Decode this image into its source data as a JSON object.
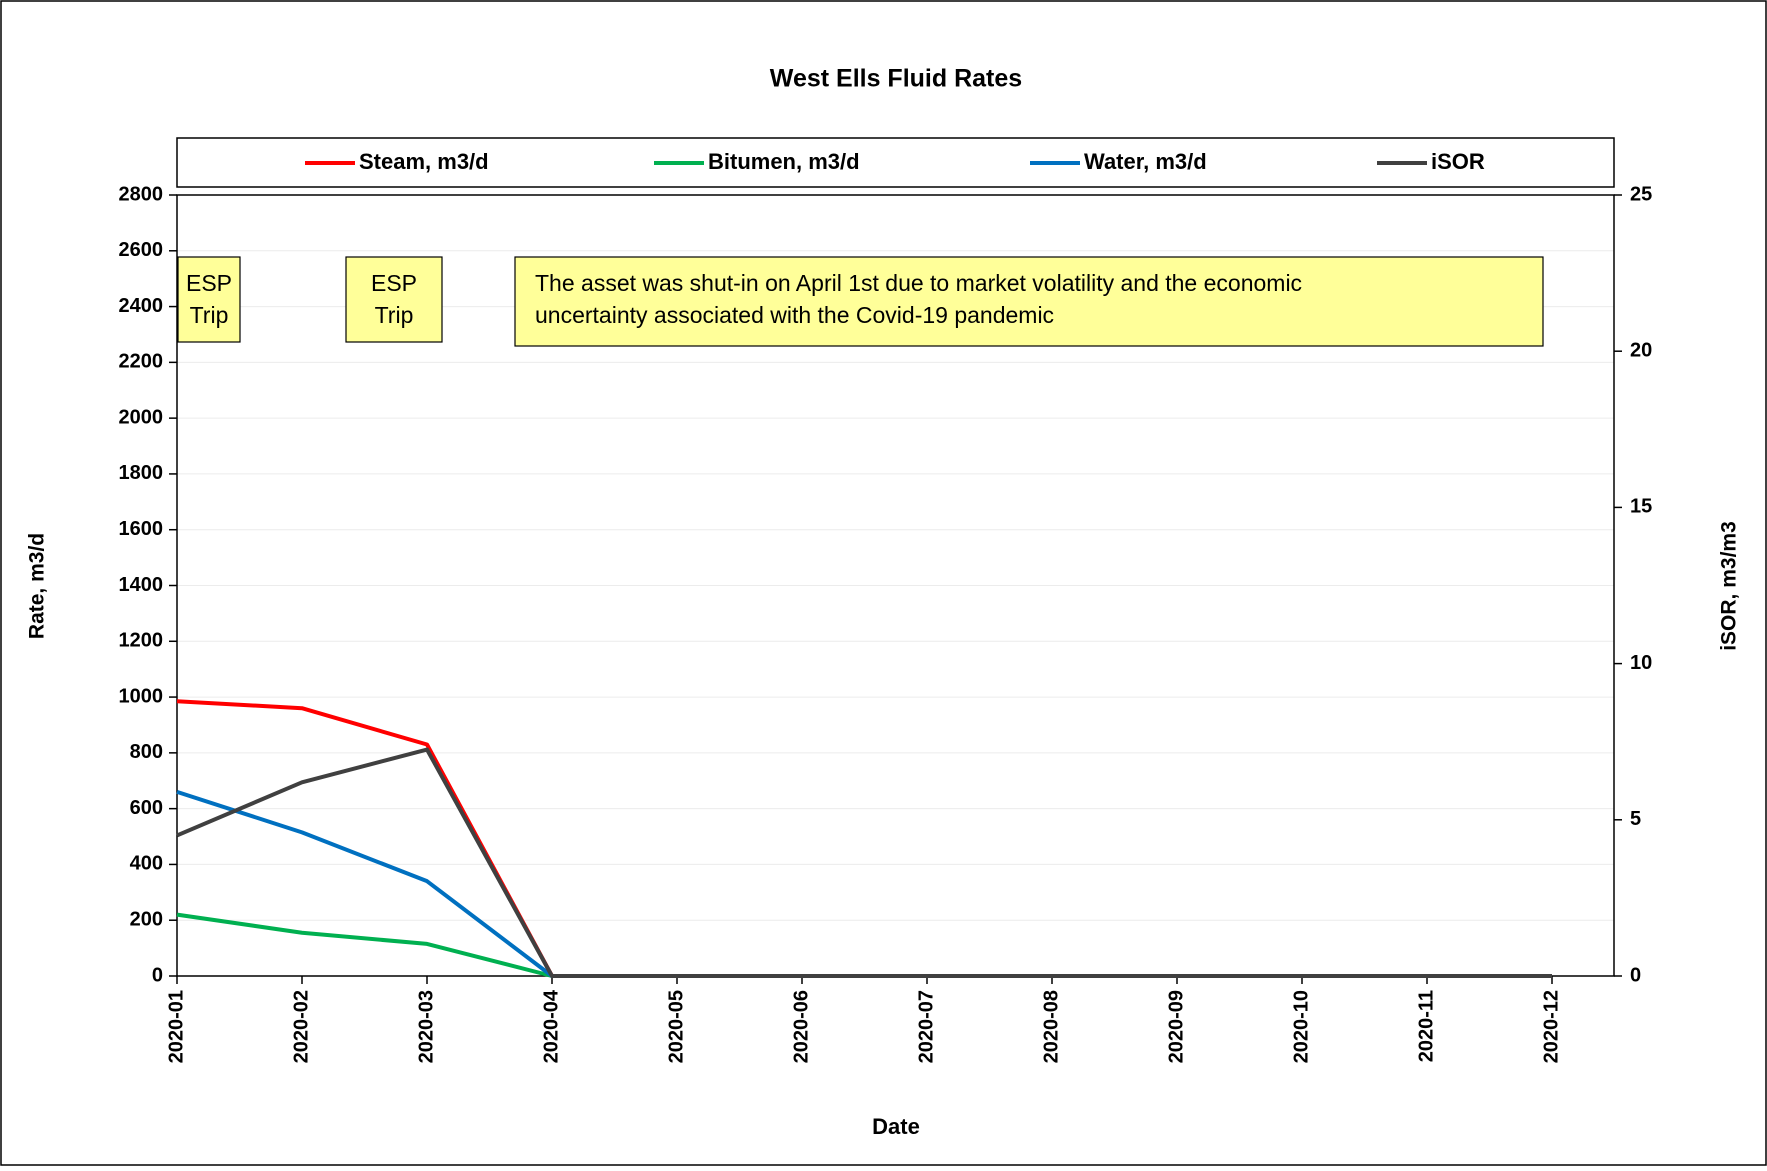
{
  "chart_data": {
    "type": "line",
    "title": "West Ells Fluid Rates",
    "x_label": "Date",
    "y_label": "Rate, m3/d",
    "y2_label": "iSOR, m3/m3",
    "categories": [
      "2020-01",
      "2020-02",
      "2020-03",
      "2020-04",
      "2020-05",
      "2020-06",
      "2020-07",
      "2020-08",
      "2020-09",
      "2020-10",
      "2020-11",
      "2020-12"
    ],
    "series": [
      {
        "name": "Steam, m3/d",
        "color": "#ff0000",
        "values": [
          985,
          960,
          830,
          0,
          0,
          0,
          0,
          0,
          0,
          0,
          0,
          0
        ]
      },
      {
        "name": "Bitumen, m3/d",
        "color": "#00b050",
        "values": [
          220,
          155,
          115,
          0,
          0,
          0,
          0,
          0,
          0,
          0,
          0,
          0
        ]
      },
      {
        "name": "Water, m3/d",
        "color": "#0070c0",
        "values": [
          660,
          515,
          340,
          0,
          0,
          0,
          0,
          0,
          0,
          0,
          0,
          0
        ]
      },
      {
        "name": "iSOR",
        "color": "#404040",
        "axis": "y2",
        "values": [
          4.5,
          6.2,
          7.25,
          0,
          0,
          0,
          0,
          0,
          0,
          0,
          0,
          0
        ]
      }
    ],
    "ylim": [
      0,
      2800
    ],
    "yticks": [
      0,
      200,
      400,
      600,
      800,
      1000,
      1200,
      1400,
      1600,
      1800,
      2000,
      2200,
      2400,
      2600,
      2800
    ],
    "y2lim": [
      0,
      25
    ],
    "y2ticks": [
      0,
      5,
      10,
      15,
      20,
      25
    ],
    "grid": true,
    "legend": "top",
    "annotations": [
      {
        "lines": [
          "ESP",
          "Trip"
        ]
      },
      {
        "lines": [
          "ESP",
          "Trip"
        ]
      },
      {
        "lines": [
          "The asset was shut-in on April 1st due to market volatility and the economic",
          "uncertainty associated with the Covid-19 pandemic"
        ]
      }
    ]
  }
}
